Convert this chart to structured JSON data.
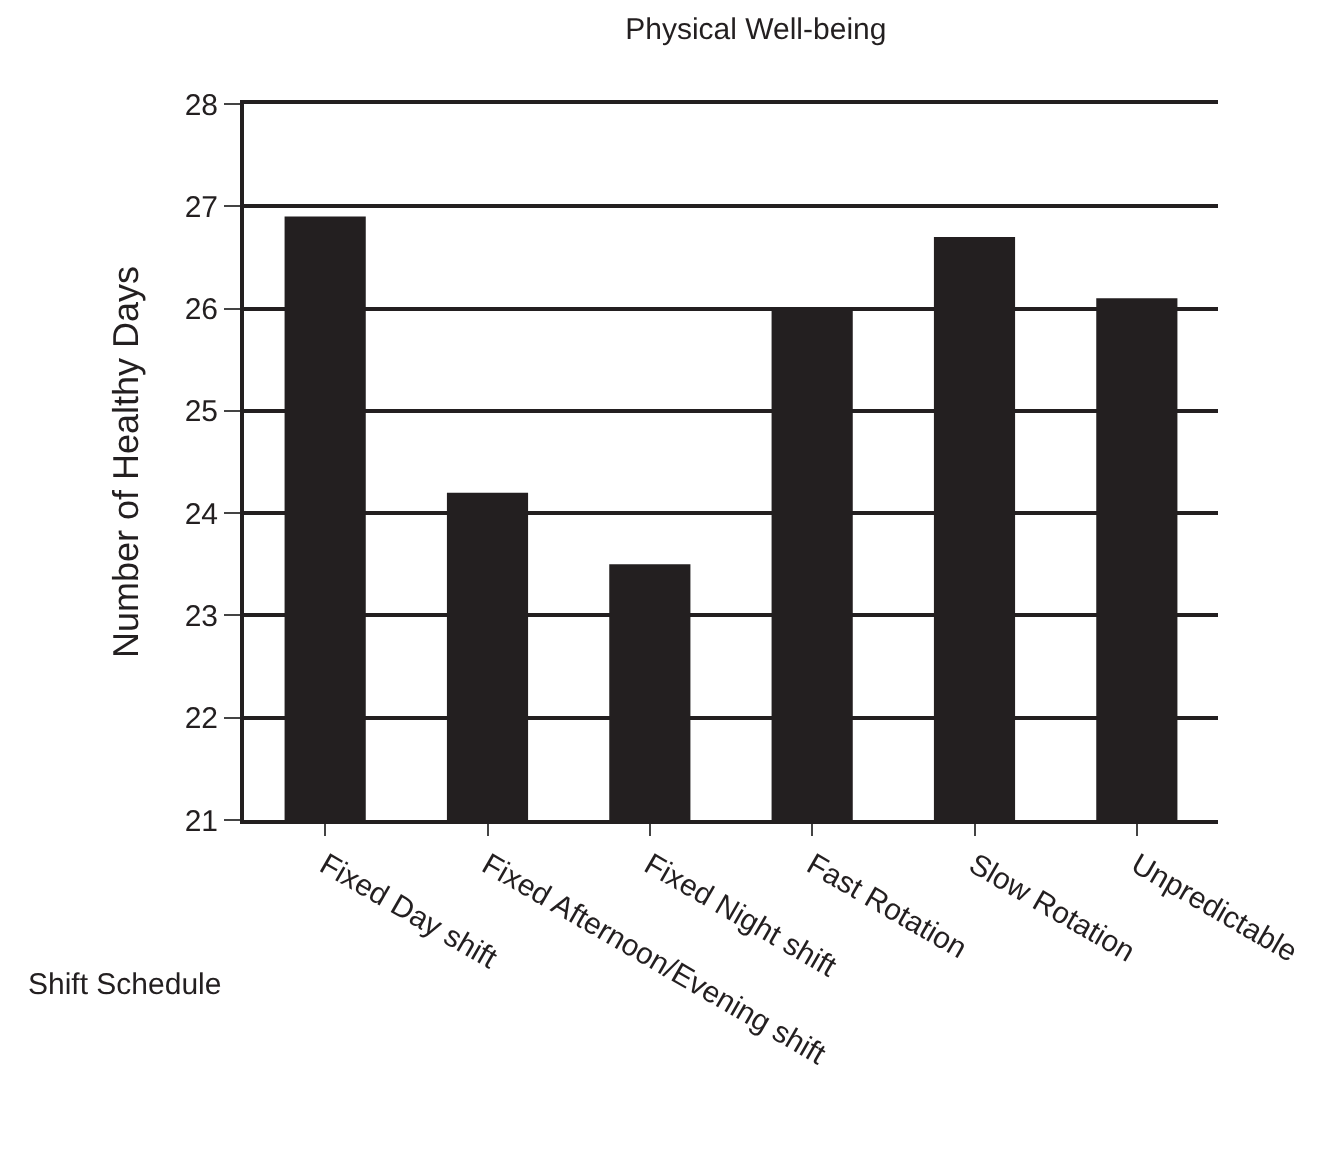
{
  "chart_data": {
    "type": "bar",
    "title": "Physical Well-being",
    "xlabel": "Shift Schedule",
    "ylabel": "Number of Healthy Days",
    "categories": [
      "Fixed Day shift",
      "Fixed Afternoon/Evening shift",
      "Fixed Night shift",
      "Fast Rotation",
      "Slow Rotation",
      "Unpredictable"
    ],
    "values": [
      26.9,
      24.2,
      23.5,
      26.0,
      26.7,
      26.1
    ],
    "color": "#231f20",
    "ylim": [
      21,
      28
    ],
    "yticks": [
      21,
      22,
      23,
      24,
      25,
      26,
      27,
      28
    ],
    "grid": "y"
  }
}
